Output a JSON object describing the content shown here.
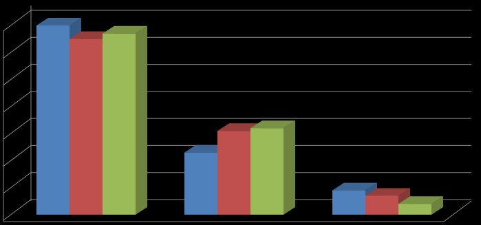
{
  "chart_data": {
    "type": "bar3d",
    "categories": [
      null,
      null,
      null
    ],
    "series": [
      {
        "color": "#4f81bd",
        "values": [
          7.0,
          2.3,
          0.9
        ]
      },
      {
        "color": "#c0504d",
        "values": [
          6.5,
          3.1,
          0.7
        ]
      },
      {
        "color": "#9bbb59",
        "values": [
          6.7,
          3.2,
          0.4
        ]
      }
    ],
    "ylim": [
      0,
      7
    ],
    "yticks": [
      0,
      1,
      2,
      3,
      4,
      5,
      6,
      7
    ],
    "grid": true
  }
}
